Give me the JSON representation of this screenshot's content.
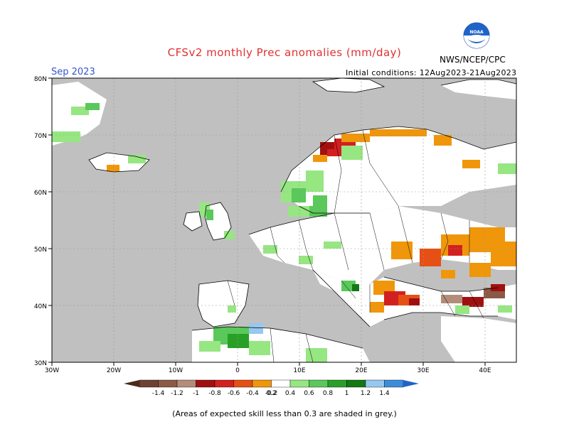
{
  "title": "CFSv2 monthly Prec anomalies (mm/day)",
  "month": "Sep 2023",
  "initial_conditions": "Initial conditions: 12Aug2023-21Aug2023",
  "agency": "NWS/NCEP/CPC",
  "logo_text": "NOAA",
  "footer_note": "(Areas of expected skill less than 0.3 are shaded in grey.)",
  "colors": {
    "ocean_grey": "#c0c0c0",
    "land_white": "#ffffff",
    "brown_dark": "#6e4232",
    "brown": "#8b5a46",
    "brown_light": "#b48c7a",
    "dark_red": "#a01010",
    "red": "#d22020",
    "orange_red": "#e65014",
    "orange": "#f0960a",
    "light_green": "#96e682",
    "green": "#5ac85a",
    "mid_green": "#28a028",
    "dark_green": "#147814",
    "light_blue": "#96c8f0",
    "blue": "#3c8cdc"
  },
  "map": {
    "lat_labels": [
      "30N",
      "40N",
      "50N",
      "60N",
      "70N",
      "80N"
    ],
    "lon_labels": [
      "30W",
      "20W",
      "10W",
      "0",
      "10E",
      "20E",
      "30E",
      "40E"
    ]
  },
  "colorbar": {
    "tick_labels": [
      "-1.4",
      "-1.2",
      "-1",
      "-0.8",
      "-0.6",
      "-0.4",
      "-0.2",
      "0.2",
      "0.4",
      "0.6",
      "0.8",
      "1",
      "1.2",
      "1.4"
    ],
    "segment_colors": [
      "#6e4232",
      "#8b5a46",
      "#b48c7a",
      "#a01010",
      "#d22020",
      "#e65014",
      "#f0960a",
      "#ffffff",
      "#96e682",
      "#5ac85a",
      "#28a028",
      "#147814",
      "#96c8f0",
      "#3c8cdc"
    ],
    "left_arrow_color": "#4a2a1a",
    "right_arrow_color": "#1e64c8"
  }
}
